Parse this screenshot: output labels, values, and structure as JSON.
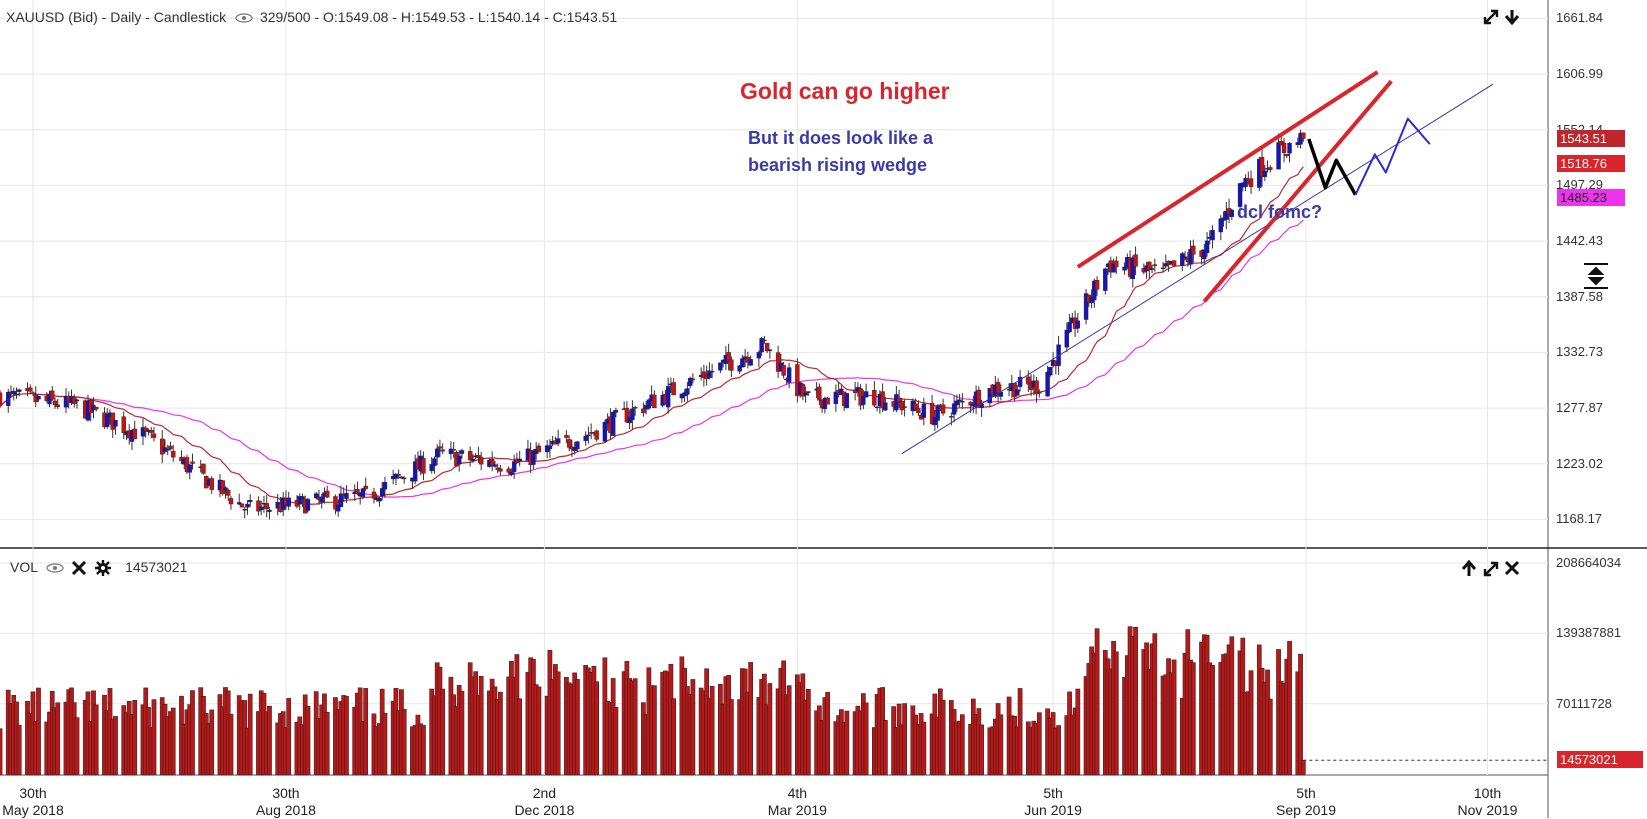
{
  "header": {
    "symbol": "XAUUSD (Bid) - Daily - Candlestick",
    "bars": "329/500",
    "ohlc": "O:1549.08 - H:1549.53 - L:1540.14 - C:1543.51"
  },
  "vol_header": {
    "label": "VOL",
    "value": "14573021"
  },
  "annotations": {
    "title": "Gold can go higher",
    "subtitle_line1": "But it does look like a",
    "subtitle_line2": "bearish rising wedge",
    "note": "dcl fomc?"
  },
  "price_axis": {
    "ticks": [
      "1661.84",
      "1606.99",
      "1552.14",
      "1497.29",
      "1442.43",
      "1387.58",
      "1332.73",
      "1277.87",
      "1223.02",
      "1168.17"
    ],
    "tags": [
      {
        "value": "1543.51",
        "color": "#c0262c"
      },
      {
        "value": "1518.76",
        "color": "#d9262c"
      },
      {
        "value": "1485.23",
        "color": "#ee33ee"
      }
    ]
  },
  "volume_axis": {
    "ticks": [
      "208664034",
      "139387881",
      "70111728"
    ],
    "tag": {
      "value": "14573021",
      "color": "#d9262c"
    }
  },
  "x_axis": {
    "labels": [
      {
        "day": "30th",
        "month": "May 2018"
      },
      {
        "day": "30th",
        "month": "Aug 2018"
      },
      {
        "day": "2nd",
        "month": "Dec 2018"
      },
      {
        "day": "4th",
        "month": "Mar 2019"
      },
      {
        "day": "5th",
        "month": "Jun 2019"
      },
      {
        "day": "5th",
        "month": "Sep 2019"
      },
      {
        "day": "10th",
        "month": "Nov 2019"
      }
    ]
  },
  "chart_data": {
    "type": "candlestick",
    "symbol": "XAUUSD (Bid)",
    "timeframe": "Daily",
    "last_bar": {
      "open": 1549.08,
      "high": 1549.53,
      "low": 1540.14,
      "close": 1543.51
    },
    "ylim": [
      1140,
      1680
    ],
    "x_range": [
      "2018-05-18",
      "2019-12-02"
    ],
    "price_anchors": [
      {
        "date": "2018-05-18",
        "price": 1290
      },
      {
        "date": "2018-06-15",
        "price": 1280
      },
      {
        "date": "2018-07-10",
        "price": 1250
      },
      {
        "date": "2018-08-16",
        "price": 1178
      },
      {
        "date": "2018-09-28",
        "price": 1190
      },
      {
        "date": "2018-10-25",
        "price": 1232
      },
      {
        "date": "2018-11-20",
        "price": 1222
      },
      {
        "date": "2018-12-20",
        "price": 1255
      },
      {
        "date": "2019-01-30",
        "price": 1312
      },
      {
        "date": "2019-02-20",
        "price": 1340
      },
      {
        "date": "2019-03-07",
        "price": 1287
      },
      {
        "date": "2019-04-01",
        "price": 1290
      },
      {
        "date": "2019-04-23",
        "price": 1270
      },
      {
        "date": "2019-05-15",
        "price": 1298
      },
      {
        "date": "2019-05-31",
        "price": 1300
      },
      {
        "date": "2019-06-20",
        "price": 1395
      },
      {
        "date": "2019-06-25",
        "price": 1420
      },
      {
        "date": "2019-07-15",
        "price": 1410
      },
      {
        "date": "2019-08-01",
        "price": 1440
      },
      {
        "date": "2019-08-13",
        "price": 1500
      },
      {
        "date": "2019-08-26",
        "price": 1530
      },
      {
        "date": "2019-09-04",
        "price": 1543.51
      }
    ],
    "volume_range": [
      0,
      208664034
    ],
    "last_volume": 14573021,
    "moving_averages": [
      {
        "period": "short",
        "color": "#c0262c",
        "last_value": 1518.76
      },
      {
        "period": "long",
        "color": "#ee33ee",
        "last_value": 1485.23
      }
    ],
    "drawings": {
      "wedge_upper": [
        {
          "date": "2019-06-14",
          "price": 1417
        },
        {
          "date": "2019-10-01",
          "price": 1609
        }
      ],
      "wedge_lower": [
        {
          "date": "2019-07-30",
          "price": 1383
        },
        {
          "date": "2019-10-06",
          "price": 1600
        }
      ],
      "support_trend": [
        {
          "date": "2019-04-11",
          "price": 1233
        },
        {
          "date": "2019-11-12",
          "price": 1597
        }
      ],
      "black_projection": [
        {
          "date": "2019-09-06",
          "price": 1543
        },
        {
          "date": "2019-09-12",
          "price": 1495
        },
        {
          "date": "2019-09-16",
          "price": 1522
        },
        {
          "date": "2019-09-23",
          "price": 1488
        }
      ],
      "blue_projection": [
        {
          "date": "2019-09-23",
          "price": 1488
        },
        {
          "date": "2019-09-30",
          "price": 1528
        },
        {
          "date": "2019-10-04",
          "price": 1510
        },
        {
          "date": "2019-10-12",
          "price": 1563
        },
        {
          "date": "2019-10-20",
          "price": 1538
        }
      ]
    },
    "grid": true
  },
  "colors": {
    "bull": "#1515bb",
    "bear": "#cc1111",
    "wedge": "#d9262c",
    "support": "#3333aa",
    "projection_black": "#000000",
    "projection_blue": "#2b2bd0",
    "annotation_red": "#d9262c",
    "annotation_blue": "#3b3ba8",
    "volume_fill": "#b81818"
  },
  "icons": [
    "eye-icon",
    "close-icon",
    "gear-icon",
    "expand-icon",
    "download-icon",
    "arrow-up-icon",
    "resize-icon"
  ]
}
